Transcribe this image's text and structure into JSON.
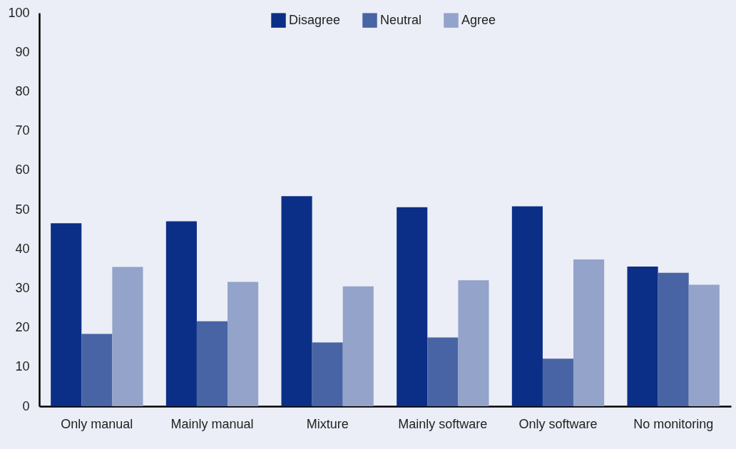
{
  "chart_data": {
    "type": "bar",
    "categories": [
      "Only manual",
      "Mainly manual",
      "Mixture",
      "Mainly software",
      "Only software",
      "No monitoring"
    ],
    "series": [
      {
        "name": "Disagree",
        "color": "#0b2f86",
        "values": [
          46.5,
          47.0,
          53.4,
          50.6,
          50.8,
          35.5
        ]
      },
      {
        "name": "Neutral",
        "color": "#4864a4",
        "values": [
          18.4,
          21.6,
          16.2,
          17.5,
          12.1,
          33.9
        ]
      },
      {
        "name": "Agree",
        "color": "#93a3ca",
        "values": [
          35.4,
          31.6,
          30.5,
          32.0,
          37.3,
          30.9
        ]
      }
    ],
    "ylim": [
      0,
      100
    ],
    "yticks": [
      0,
      10,
      20,
      30,
      40,
      50,
      60,
      70,
      80,
      90,
      100
    ],
    "grid": false,
    "legend": "top"
  }
}
